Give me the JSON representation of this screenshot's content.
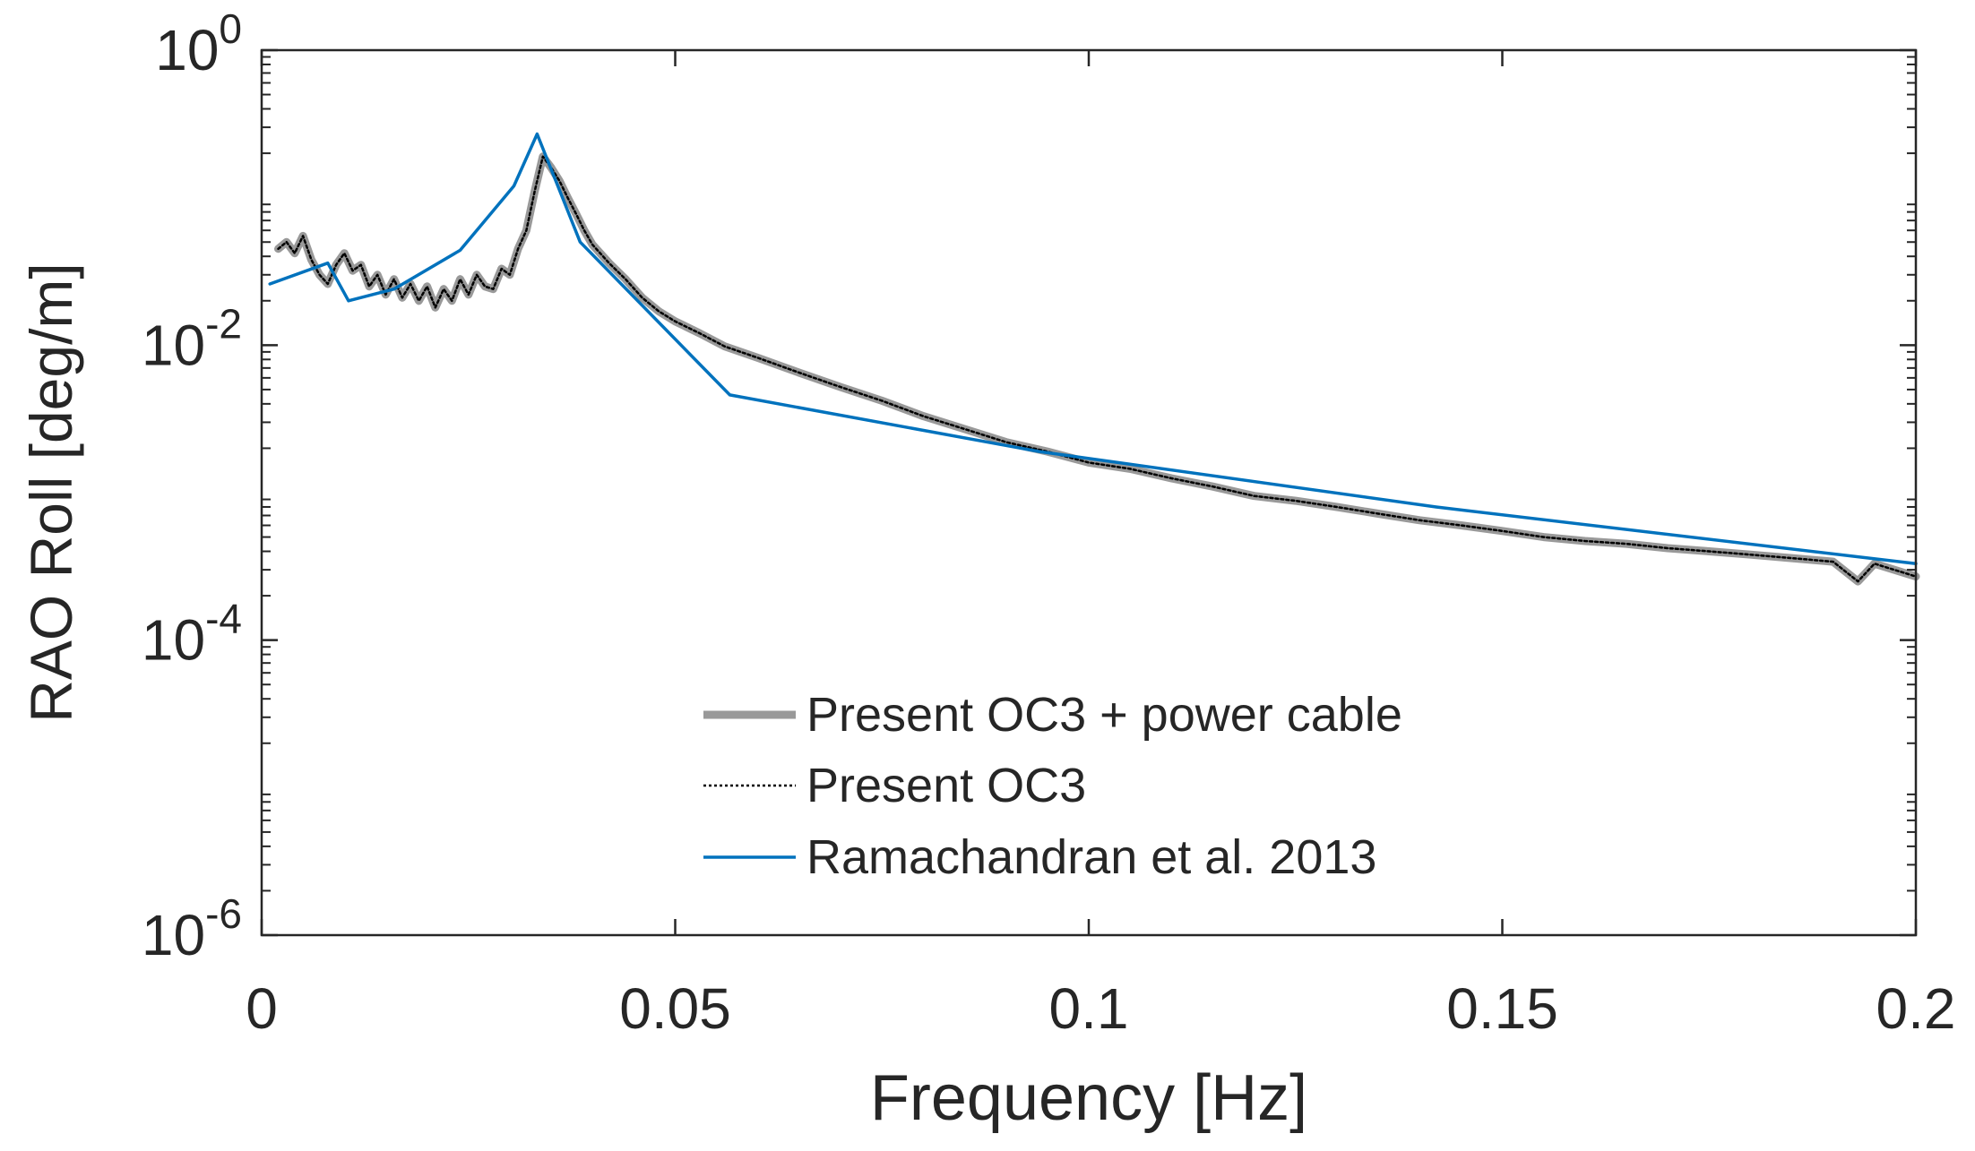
{
  "chart_data": {
    "type": "line",
    "xlabel": "Frequency [Hz]",
    "ylabel": "RAO Roll [deg/m]",
    "xlim": [
      0,
      0.2
    ],
    "ylim": [
      1e-06,
      1
    ],
    "yscale": "log",
    "grid": false,
    "legend_position": "bottom-center",
    "x_ticks": [
      {
        "value": 0,
        "label": "0"
      },
      {
        "value": 0.05,
        "label": "0.05"
      },
      {
        "value": 0.1,
        "label": "0.1"
      },
      {
        "value": 0.15,
        "label": "0.15"
      },
      {
        "value": 0.2,
        "label": "0.2"
      }
    ],
    "y_ticks": [
      {
        "value": 1,
        "base": "10",
        "exp": "0"
      },
      {
        "value": 0.01,
        "base": "10",
        "exp": "-2"
      },
      {
        "value": 0.0001,
        "base": "10",
        "exp": "-4"
      },
      {
        "value": 1e-06,
        "base": "10",
        "exp": "-6"
      }
    ],
    "series": [
      {
        "name": "Present OC3 + power cable",
        "color": "#999999",
        "style": "thick-solid",
        "x": [
          0.002,
          0.003,
          0.004,
          0.005,
          0.006,
          0.007,
          0.008,
          0.009,
          0.01,
          0.011,
          0.012,
          0.013,
          0.014,
          0.015,
          0.016,
          0.017,
          0.018,
          0.019,
          0.02,
          0.021,
          0.022,
          0.023,
          0.024,
          0.025,
          0.026,
          0.027,
          0.028,
          0.029,
          0.03,
          0.031,
          0.032,
          0.033,
          0.034,
          0.035,
          0.036,
          0.037,
          0.038,
          0.039,
          0.04,
          0.042,
          0.044,
          0.046,
          0.048,
          0.05,
          0.053,
          0.056,
          0.06,
          0.065,
          0.07,
          0.075,
          0.08,
          0.085,
          0.09,
          0.095,
          0.1,
          0.105,
          0.11,
          0.115,
          0.12,
          0.125,
          0.13,
          0.135,
          0.14,
          0.145,
          0.15,
          0.155,
          0.16,
          0.165,
          0.17,
          0.175,
          0.18,
          0.185,
          0.19,
          0.193,
          0.195,
          0.2
        ],
        "y": [
          0.045,
          0.05,
          0.042,
          0.055,
          0.038,
          0.03,
          0.026,
          0.035,
          0.042,
          0.032,
          0.035,
          0.025,
          0.03,
          0.022,
          0.028,
          0.021,
          0.026,
          0.02,
          0.025,
          0.018,
          0.024,
          0.02,
          0.028,
          0.022,
          0.03,
          0.025,
          0.024,
          0.033,
          0.03,
          0.045,
          0.06,
          0.11,
          0.19,
          0.16,
          0.13,
          0.1,
          0.078,
          0.06,
          0.048,
          0.036,
          0.028,
          0.021,
          0.017,
          0.0145,
          0.012,
          0.0098,
          0.0082,
          0.0065,
          0.0052,
          0.0042,
          0.0033,
          0.0027,
          0.0022,
          0.0019,
          0.0016,
          0.00145,
          0.00125,
          0.0011,
          0.00095,
          0.00088,
          0.0008,
          0.00072,
          0.00065,
          0.0006,
          0.00055,
          0.0005,
          0.00047,
          0.00045,
          0.00042,
          0.0004,
          0.00038,
          0.00036,
          0.00034,
          0.00025,
          0.00033,
          0.00027
        ]
      },
      {
        "name": "Present OC3",
        "color": "#000000",
        "style": "dotted",
        "x": [
          0.002,
          0.003,
          0.004,
          0.005,
          0.006,
          0.007,
          0.008,
          0.009,
          0.01,
          0.011,
          0.012,
          0.013,
          0.014,
          0.015,
          0.016,
          0.017,
          0.018,
          0.019,
          0.02,
          0.021,
          0.022,
          0.023,
          0.024,
          0.025,
          0.026,
          0.027,
          0.028,
          0.029,
          0.03,
          0.031,
          0.032,
          0.033,
          0.034,
          0.035,
          0.036,
          0.037,
          0.038,
          0.039,
          0.04,
          0.042,
          0.044,
          0.046,
          0.048,
          0.05,
          0.053,
          0.056,
          0.06,
          0.065,
          0.07,
          0.075,
          0.08,
          0.085,
          0.09,
          0.095,
          0.1,
          0.105,
          0.11,
          0.115,
          0.12,
          0.125,
          0.13,
          0.135,
          0.14,
          0.145,
          0.15,
          0.155,
          0.16,
          0.165,
          0.17,
          0.175,
          0.18,
          0.185,
          0.19,
          0.193,
          0.195,
          0.2
        ],
        "y": [
          0.045,
          0.05,
          0.042,
          0.055,
          0.038,
          0.03,
          0.026,
          0.035,
          0.042,
          0.032,
          0.035,
          0.025,
          0.03,
          0.022,
          0.028,
          0.021,
          0.026,
          0.02,
          0.025,
          0.018,
          0.024,
          0.02,
          0.028,
          0.022,
          0.03,
          0.025,
          0.024,
          0.033,
          0.03,
          0.045,
          0.06,
          0.11,
          0.19,
          0.16,
          0.13,
          0.1,
          0.078,
          0.06,
          0.048,
          0.036,
          0.028,
          0.021,
          0.017,
          0.0145,
          0.012,
          0.0098,
          0.0082,
          0.0065,
          0.0052,
          0.0042,
          0.0033,
          0.0027,
          0.0022,
          0.0019,
          0.0016,
          0.00145,
          0.00125,
          0.0011,
          0.00095,
          0.00088,
          0.0008,
          0.00072,
          0.00065,
          0.0006,
          0.00055,
          0.0005,
          0.00047,
          0.00045,
          0.00042,
          0.0004,
          0.00038,
          0.00036,
          0.00034,
          0.00025,
          0.00033,
          0.00027
        ]
      },
      {
        "name": "Ramachandran et al. 2013",
        "color": "#0072BD",
        "style": "solid",
        "x": [
          0.001,
          0.008,
          0.0105,
          0.016,
          0.024,
          0.0305,
          0.0333,
          0.0385,
          0.0566,
          0.094,
          0.142,
          0.2
        ],
        "y": [
          0.026,
          0.036,
          0.02,
          0.024,
          0.044,
          0.12,
          0.27,
          0.05,
          0.0046,
          0.0019,
          0.0008,
          0.00033
        ]
      }
    ]
  }
}
